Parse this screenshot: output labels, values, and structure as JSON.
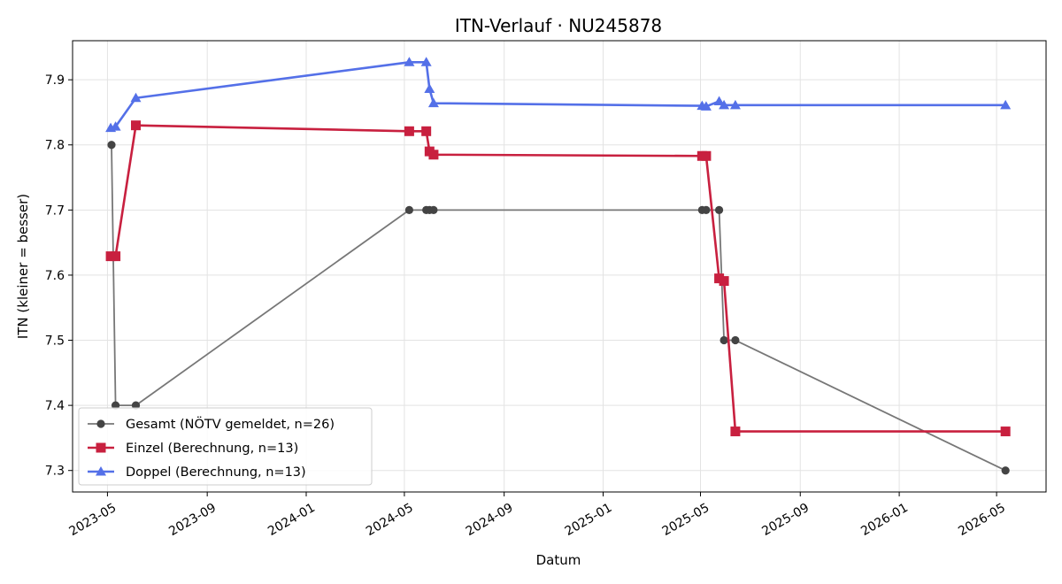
{
  "chart_data": {
    "type": "line",
    "title": "ITN-Verlauf · NU245878",
    "xlabel": "Datum",
    "ylabel": "ITN  (kleiner = besser)",
    "x_ticks": [
      "2023-05",
      "2023-09",
      "2024-01",
      "2024-05",
      "2024-09",
      "2025-01",
      "2025-05",
      "2025-09",
      "2026-01",
      "2026-05"
    ],
    "y_ticks": [
      7.3,
      7.4,
      7.5,
      7.6,
      7.7,
      7.8,
      7.9
    ],
    "xlim": [
      "2023-03-19",
      "2026-07-01"
    ],
    "ylim": [
      7.267,
      7.96
    ],
    "grid": true,
    "legend_position": "lower-left",
    "series": [
      {
        "name": "Gesamt (NÖTV gemeldet, n=26)",
        "color": "#444444",
        "marker": "circle",
        "points": [
          {
            "x": "2023-05-06",
            "y": 7.8
          },
          {
            "x": "2023-05-11",
            "y": 7.4
          },
          {
            "x": "2023-06-05",
            "y": 7.4
          },
          {
            "x": "2024-05-07",
            "y": 7.7
          },
          {
            "x": "2024-05-28",
            "y": 7.7
          },
          {
            "x": "2024-06-01",
            "y": 7.7
          },
          {
            "x": "2024-06-06",
            "y": 7.7
          },
          {
            "x": "2025-05-03",
            "y": 7.7
          },
          {
            "x": "2025-05-08",
            "y": 7.7
          },
          {
            "x": "2025-05-24",
            "y": 7.7
          },
          {
            "x": "2025-05-30",
            "y": 7.5
          },
          {
            "x": "2025-06-13",
            "y": 7.5
          },
          {
            "x": "2026-05-12",
            "y": 7.3
          }
        ]
      },
      {
        "name": "Einzel (Berechnung, n=13)",
        "color": "#c8203f",
        "marker": "square",
        "points": [
          {
            "x": "2023-05-05",
            "y": 7.629
          },
          {
            "x": "2023-05-11",
            "y": 7.629
          },
          {
            "x": "2023-06-05",
            "y": 7.83
          },
          {
            "x": "2024-05-07",
            "y": 7.821
          },
          {
            "x": "2024-05-28",
            "y": 7.821
          },
          {
            "x": "2024-06-01",
            "y": 7.79
          },
          {
            "x": "2024-06-06",
            "y": 7.785
          },
          {
            "x": "2025-05-03",
            "y": 7.783
          },
          {
            "x": "2025-05-08",
            "y": 7.783
          },
          {
            "x": "2025-05-24",
            "y": 7.595
          },
          {
            "x": "2025-05-30",
            "y": 7.591
          },
          {
            "x": "2025-06-13",
            "y": 7.36
          },
          {
            "x": "2026-05-12",
            "y": 7.36
          }
        ]
      },
      {
        "name": "Doppel (Berechnung, n=13)",
        "color": "#5470e8",
        "marker": "triangle",
        "points": [
          {
            "x": "2023-05-05",
            "y": 7.826
          },
          {
            "x": "2023-05-11",
            "y": 7.828
          },
          {
            "x": "2023-06-05",
            "y": 7.872
          },
          {
            "x": "2024-05-07",
            "y": 7.927
          },
          {
            "x": "2024-05-28",
            "y": 7.927
          },
          {
            "x": "2024-06-01",
            "y": 7.886
          },
          {
            "x": "2024-06-06",
            "y": 7.864
          },
          {
            "x": "2025-05-03",
            "y": 7.86
          },
          {
            "x": "2025-05-08",
            "y": 7.859
          },
          {
            "x": "2025-05-24",
            "y": 7.867
          },
          {
            "x": "2025-05-30",
            "y": 7.861
          },
          {
            "x": "2025-06-13",
            "y": 7.861
          },
          {
            "x": "2026-05-12",
            "y": 7.861
          }
        ]
      }
    ]
  }
}
